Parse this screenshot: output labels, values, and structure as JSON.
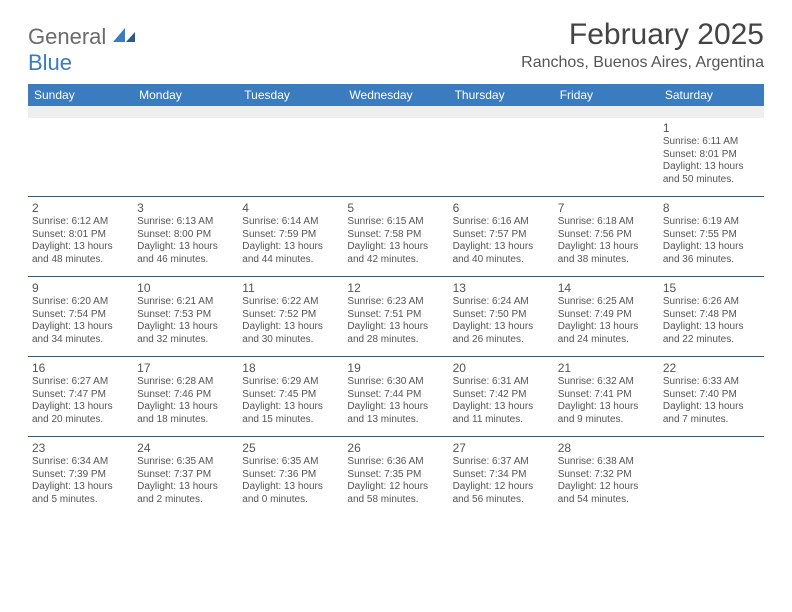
{
  "brand": {
    "part1": "General",
    "part2": "Blue"
  },
  "title": "February 2025",
  "location": "Ranchos, Buenos Aires, Argentina",
  "colors": {
    "header_bg": "#3b7bbf",
    "header_text": "#ffffff",
    "sep_color": "#2a5a8a",
    "body_text": "#555555",
    "blank_bg": "#eeeeee",
    "page_bg": "#ffffff",
    "logo_gray": "#6b6b6b",
    "logo_blue": "#3b7bbf"
  },
  "typography": {
    "title_fontsize": 30,
    "location_fontsize": 16,
    "dayhead_fontsize": 12,
    "daynum_fontsize": 12,
    "body_fontsize": 10
  },
  "day_names": [
    "Sunday",
    "Monday",
    "Tuesday",
    "Wednesday",
    "Thursday",
    "Friday",
    "Saturday"
  ],
  "weeks": [
    [
      null,
      null,
      null,
      null,
      null,
      null,
      {
        "n": "1",
        "sunrise": "Sunrise: 6:11 AM",
        "sunset": "Sunset: 8:01 PM",
        "day1": "Daylight: 13 hours",
        "day2": "and 50 minutes."
      }
    ],
    [
      {
        "n": "2",
        "sunrise": "Sunrise: 6:12 AM",
        "sunset": "Sunset: 8:01 PM",
        "day1": "Daylight: 13 hours",
        "day2": "and 48 minutes."
      },
      {
        "n": "3",
        "sunrise": "Sunrise: 6:13 AM",
        "sunset": "Sunset: 8:00 PM",
        "day1": "Daylight: 13 hours",
        "day2": "and 46 minutes."
      },
      {
        "n": "4",
        "sunrise": "Sunrise: 6:14 AM",
        "sunset": "Sunset: 7:59 PM",
        "day1": "Daylight: 13 hours",
        "day2": "and 44 minutes."
      },
      {
        "n": "5",
        "sunrise": "Sunrise: 6:15 AM",
        "sunset": "Sunset: 7:58 PM",
        "day1": "Daylight: 13 hours",
        "day2": "and 42 minutes."
      },
      {
        "n": "6",
        "sunrise": "Sunrise: 6:16 AM",
        "sunset": "Sunset: 7:57 PM",
        "day1": "Daylight: 13 hours",
        "day2": "and 40 minutes."
      },
      {
        "n": "7",
        "sunrise": "Sunrise: 6:18 AM",
        "sunset": "Sunset: 7:56 PM",
        "day1": "Daylight: 13 hours",
        "day2": "and 38 minutes."
      },
      {
        "n": "8",
        "sunrise": "Sunrise: 6:19 AM",
        "sunset": "Sunset: 7:55 PM",
        "day1": "Daylight: 13 hours",
        "day2": "and 36 minutes."
      }
    ],
    [
      {
        "n": "9",
        "sunrise": "Sunrise: 6:20 AM",
        "sunset": "Sunset: 7:54 PM",
        "day1": "Daylight: 13 hours",
        "day2": "and 34 minutes."
      },
      {
        "n": "10",
        "sunrise": "Sunrise: 6:21 AM",
        "sunset": "Sunset: 7:53 PM",
        "day1": "Daylight: 13 hours",
        "day2": "and 32 minutes."
      },
      {
        "n": "11",
        "sunrise": "Sunrise: 6:22 AM",
        "sunset": "Sunset: 7:52 PM",
        "day1": "Daylight: 13 hours",
        "day2": "and 30 minutes."
      },
      {
        "n": "12",
        "sunrise": "Sunrise: 6:23 AM",
        "sunset": "Sunset: 7:51 PM",
        "day1": "Daylight: 13 hours",
        "day2": "and 28 minutes."
      },
      {
        "n": "13",
        "sunrise": "Sunrise: 6:24 AM",
        "sunset": "Sunset: 7:50 PM",
        "day1": "Daylight: 13 hours",
        "day2": "and 26 minutes."
      },
      {
        "n": "14",
        "sunrise": "Sunrise: 6:25 AM",
        "sunset": "Sunset: 7:49 PM",
        "day1": "Daylight: 13 hours",
        "day2": "and 24 minutes."
      },
      {
        "n": "15",
        "sunrise": "Sunrise: 6:26 AM",
        "sunset": "Sunset: 7:48 PM",
        "day1": "Daylight: 13 hours",
        "day2": "and 22 minutes."
      }
    ],
    [
      {
        "n": "16",
        "sunrise": "Sunrise: 6:27 AM",
        "sunset": "Sunset: 7:47 PM",
        "day1": "Daylight: 13 hours",
        "day2": "and 20 minutes."
      },
      {
        "n": "17",
        "sunrise": "Sunrise: 6:28 AM",
        "sunset": "Sunset: 7:46 PM",
        "day1": "Daylight: 13 hours",
        "day2": "and 18 minutes."
      },
      {
        "n": "18",
        "sunrise": "Sunrise: 6:29 AM",
        "sunset": "Sunset: 7:45 PM",
        "day1": "Daylight: 13 hours",
        "day2": "and 15 minutes."
      },
      {
        "n": "19",
        "sunrise": "Sunrise: 6:30 AM",
        "sunset": "Sunset: 7:44 PM",
        "day1": "Daylight: 13 hours",
        "day2": "and 13 minutes."
      },
      {
        "n": "20",
        "sunrise": "Sunrise: 6:31 AM",
        "sunset": "Sunset: 7:42 PM",
        "day1": "Daylight: 13 hours",
        "day2": "and 11 minutes."
      },
      {
        "n": "21",
        "sunrise": "Sunrise: 6:32 AM",
        "sunset": "Sunset: 7:41 PM",
        "day1": "Daylight: 13 hours",
        "day2": "and 9 minutes."
      },
      {
        "n": "22",
        "sunrise": "Sunrise: 6:33 AM",
        "sunset": "Sunset: 7:40 PM",
        "day1": "Daylight: 13 hours",
        "day2": "and 7 minutes."
      }
    ],
    [
      {
        "n": "23",
        "sunrise": "Sunrise: 6:34 AM",
        "sunset": "Sunset: 7:39 PM",
        "day1": "Daylight: 13 hours",
        "day2": "and 5 minutes."
      },
      {
        "n": "24",
        "sunrise": "Sunrise: 6:35 AM",
        "sunset": "Sunset: 7:37 PM",
        "day1": "Daylight: 13 hours",
        "day2": "and 2 minutes."
      },
      {
        "n": "25",
        "sunrise": "Sunrise: 6:35 AM",
        "sunset": "Sunset: 7:36 PM",
        "day1": "Daylight: 13 hours",
        "day2": "and 0 minutes."
      },
      {
        "n": "26",
        "sunrise": "Sunrise: 6:36 AM",
        "sunset": "Sunset: 7:35 PM",
        "day1": "Daylight: 12 hours",
        "day2": "and 58 minutes."
      },
      {
        "n": "27",
        "sunrise": "Sunrise: 6:37 AM",
        "sunset": "Sunset: 7:34 PM",
        "day1": "Daylight: 12 hours",
        "day2": "and 56 minutes."
      },
      {
        "n": "28",
        "sunrise": "Sunrise: 6:38 AM",
        "sunset": "Sunset: 7:32 PM",
        "day1": "Daylight: 12 hours",
        "day2": "and 54 minutes."
      },
      null
    ]
  ]
}
